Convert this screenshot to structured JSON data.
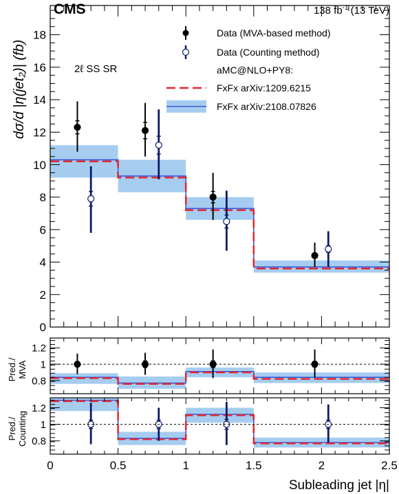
{
  "header": {
    "experiment": "CMS",
    "lumi": "138 fb",
    "lumi_sup": "-1",
    "energy": "(13 TeV)"
  },
  "region_label": "2ℓ SS SR",
  "colors": {
    "band": "#a6cdf0",
    "fxfx_new": "#3a57d6",
    "fxfx_old": "#e3262f",
    "mva": "#000000",
    "counting": "#0a1a6b"
  },
  "chart_data": [
    {
      "type": "bar",
      "panel": "main",
      "ylabel": "dσ/d |η(jet₂)| (fb)",
      "ylim": [
        0,
        19.8
      ],
      "yticks": [
        0,
        2,
        4,
        6,
        8,
        10,
        12,
        14,
        16,
        18
      ],
      "bin_edges": [
        0,
        0.5,
        1,
        1.5,
        2.5
      ],
      "series": [
        {
          "name": "Data (MVA-based method)",
          "style": "filled-marker",
          "x": [
            0.2,
            0.7,
            1.2,
            1.95
          ],
          "values": [
            12.3,
            12.1,
            8.0,
            4.4
          ],
          "err_low": [
            1.5,
            1.6,
            1.4,
            0.7
          ],
          "err_high": [
            1.6,
            1.7,
            1.5,
            0.8
          ],
          "stat_low": [
            0.4,
            0.5,
            0.35,
            0.15
          ],
          "stat_high": [
            0.4,
            0.5,
            0.35,
            0.15
          ]
        },
        {
          "name": "Data (Counting method)",
          "style": "open-marker",
          "x": [
            0.3,
            0.8,
            1.3,
            2.05
          ],
          "values": [
            7.9,
            11.2,
            6.5,
            4.8
          ],
          "err_low": [
            2.1,
            2.1,
            1.8,
            1.1
          ],
          "err_high": [
            2.0,
            2.2,
            1.9,
            1.1
          ],
          "stat_low": [
            0.45,
            0.55,
            0.4,
            0.2
          ],
          "stat_high": [
            0.45,
            0.55,
            0.4,
            0.2
          ]
        },
        {
          "name": "FxFx arXiv:1209.6215",
          "style": "dashed-step",
          "values": [
            10.2,
            9.2,
            7.2,
            3.6
          ]
        },
        {
          "name": "FxFx arXiv:2108.07826",
          "style": "step-band",
          "values": [
            10.3,
            9.3,
            7.3,
            3.7
          ],
          "band_low": [
            9.2,
            8.3,
            6.6,
            3.35
          ],
          "band_high": [
            11.2,
            10.3,
            8.0,
            4.1
          ]
        }
      ]
    },
    {
      "type": "bar",
      "panel": "ratio-mva",
      "ylabel": "Pred./ MVA",
      "ylim": [
        0.64,
        1.32
      ],
      "yticks": [
        0.8,
        1.0,
        1.2
      ],
      "ytick_labels": [
        "0.8",
        "1",
        "1.2"
      ],
      "bin_edges": [
        0,
        0.5,
        1,
        1.5,
        2.5
      ],
      "series": [
        {
          "name": "Data (MVA-based method)",
          "style": "filled-marker",
          "x": [
            0.2,
            0.7,
            1.2,
            1.95
          ],
          "values": [
            1.0,
            1.0,
            1.0,
            1.0
          ],
          "err_low": [
            0.12,
            0.13,
            0.17,
            0.16
          ],
          "err_high": [
            0.13,
            0.14,
            0.18,
            0.18
          ],
          "stat_low": [
            0.03,
            0.04,
            0.04,
            0.035
          ],
          "stat_high": [
            0.03,
            0.04,
            0.04,
            0.035
          ]
        },
        {
          "name": "FxFx arXiv:1209.6215",
          "style": "dashed-step",
          "values": [
            0.83,
            0.76,
            0.9,
            0.82
          ]
        },
        {
          "name": "FxFx arXiv:2108.07826",
          "style": "step-band",
          "values": [
            0.84,
            0.77,
            0.91,
            0.84
          ],
          "band_low": [
            0.76,
            0.7,
            0.84,
            0.77
          ],
          "band_high": [
            0.89,
            0.85,
            0.96,
            0.9
          ]
        }
      ]
    },
    {
      "type": "bar",
      "panel": "ratio-counting",
      "ylabel": "Pred./ Counting",
      "ylim": [
        0.64,
        1.32
      ],
      "yticks": [
        0.8,
        1.0,
        1.2
      ],
      "ytick_labels": [
        "0.8",
        "1",
        "1.2"
      ],
      "xlabel": "Subleading jet |η|",
      "xlim": [
        0,
        2.5
      ],
      "xticks": [
        0,
        0.5,
        1,
        1.5,
        2,
        2.5
      ],
      "xtick_labels": [
        "0",
        "0.5",
        "1",
        "1.5",
        "2",
        "2.5"
      ],
      "bin_edges": [
        0,
        0.5,
        1,
        1.5,
        2.5
      ],
      "series": [
        {
          "name": "Data (Counting method)",
          "style": "open-marker",
          "x": [
            0.3,
            0.8,
            1.3,
            2.05
          ],
          "values": [
            1.0,
            1.0,
            1.0,
            1.0
          ],
          "err_low": [
            0.24,
            0.2,
            0.25,
            0.22
          ],
          "err_high": [
            0.26,
            0.2,
            0.27,
            0.24
          ],
          "stat_low": [
            0.05,
            0.05,
            0.06,
            0.05
          ],
          "stat_high": [
            0.05,
            0.05,
            0.06,
            0.05
          ]
        },
        {
          "name": "FxFx arXiv:1209.6215",
          "style": "dashed-step",
          "values": [
            1.28,
            0.82,
            1.11,
            0.77
          ]
        },
        {
          "name": "FxFx arXiv:2108.07826",
          "style": "step-band",
          "values": [
            1.29,
            0.83,
            1.12,
            0.78
          ],
          "band_low": [
            1.16,
            0.75,
            1.02,
            0.72
          ],
          "band_high": [
            1.32,
            0.91,
            1.2,
            0.84
          ]
        }
      ]
    }
  ],
  "legend": {
    "placement": "top-right",
    "entries": [
      {
        "label": "Data (MVA-based method)",
        "style": "filled-marker"
      },
      {
        "label": "Data (Counting method)",
        "style": "open-marker"
      },
      {
        "label": "aMC@NLO+PY8:",
        "style": "header"
      },
      {
        "label": "FxFx arXiv:1209.6215",
        "style": "dashed-step"
      },
      {
        "label": "FxFx arXiv:2108.07826",
        "style": "step-band"
      }
    ]
  }
}
